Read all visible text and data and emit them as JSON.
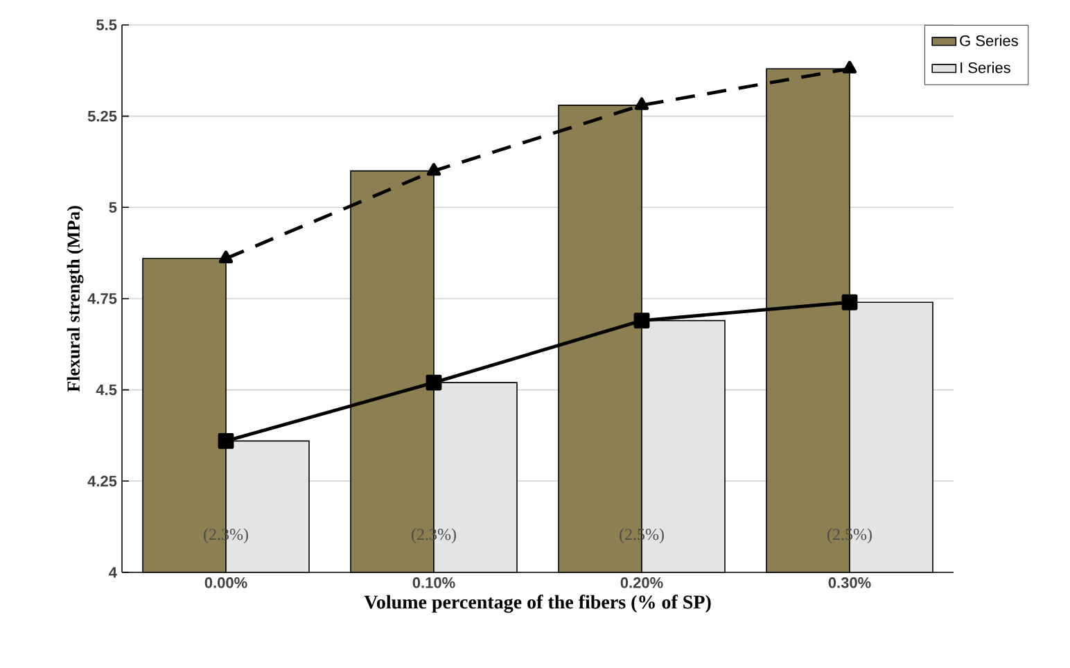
{
  "chart_data": {
    "type": "bar",
    "xlabel": "Volume percentage of the fibers  (% of SP)",
    "ylabel": "Flexural  strength (MPa)",
    "categories": [
      "0.00%",
      "0.10%",
      "0.20%",
      "0.30%"
    ],
    "series": [
      {
        "name": "G Series",
        "color": "#8c7f52",
        "values": [
          4.86,
          5.1,
          5.28,
          5.38
        ]
      },
      {
        "name": "I Series",
        "color": "#e4e4e4",
        "values": [
          4.36,
          4.52,
          4.69,
          4.74
        ]
      },
      {
        "type": "line",
        "color": "#000000",
        "marker": "triangle",
        "line_style": "dashed",
        "values": [
          4.86,
          5.1,
          5.28,
          5.38
        ]
      },
      {
        "type": "line",
        "color": "#000000",
        "marker": "square",
        "line_style": "solid",
        "values": [
          4.36,
          4.52,
          4.69,
          4.74
        ]
      }
    ],
    "ylim": [
      4,
      5.5
    ],
    "yticks": [
      4,
      4.25,
      4.5,
      4.75,
      5,
      5.25,
      5.5
    ],
    "grid": "y",
    "legend": "top right",
    "annotations": [
      {
        "text": "(2.3%)",
        "x": "0.00%",
        "y": 4.1
      },
      {
        "text": "(2.3%)",
        "x": "0.10%",
        "y": 4.1
      },
      {
        "text": "(2.5%)",
        "x": "0.20%",
        "y": 4.1
      },
      {
        "text": "(2.5%)",
        "x": "0.30%",
        "y": 4.1
      }
    ]
  }
}
